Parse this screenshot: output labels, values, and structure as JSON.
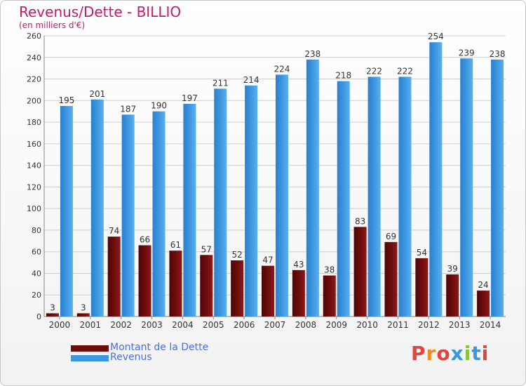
{
  "header": {
    "title": "Revenus/Dette - BILLIO",
    "subtitle": "(en milliers d'€)"
  },
  "colors": {
    "debt": "#6e0c0c",
    "revenue": "#3d97e0",
    "title": "#c41a6a",
    "legend_text": "#4b6fe0"
  },
  "logo": {
    "text": "Proxiti",
    "letter_colors": [
      "#e0453d",
      "#f28c1e",
      "#e0453d",
      "#3d97e0",
      "#8ac23a",
      "#3d97e0",
      "#e0453d"
    ]
  },
  "chart_data": {
    "type": "bar",
    "categories": [
      "2000",
      "2001",
      "2002",
      "2003",
      "2004",
      "2005",
      "2006",
      "2007",
      "2008",
      "2009",
      "2010",
      "2011",
      "2012",
      "2013",
      "2014"
    ],
    "series": [
      {
        "name": "Montant de la Dette",
        "values": [
          3,
          3,
          74,
          66,
          61,
          57,
          52,
          47,
          43,
          38,
          83,
          69,
          54,
          39,
          24
        ]
      },
      {
        "name": "Revenus",
        "values": [
          195,
          201,
          187,
          190,
          197,
          211,
          214,
          224,
          238,
          218,
          222,
          222,
          254,
          239,
          238
        ]
      }
    ],
    "ylim": [
      0,
      260
    ],
    "yticks": [
      0,
      20,
      40,
      60,
      80,
      100,
      120,
      140,
      160,
      180,
      200,
      220,
      240,
      260
    ],
    "grid": true,
    "legend_position": "bottom-left",
    "xlabel": "",
    "ylabel": ""
  }
}
